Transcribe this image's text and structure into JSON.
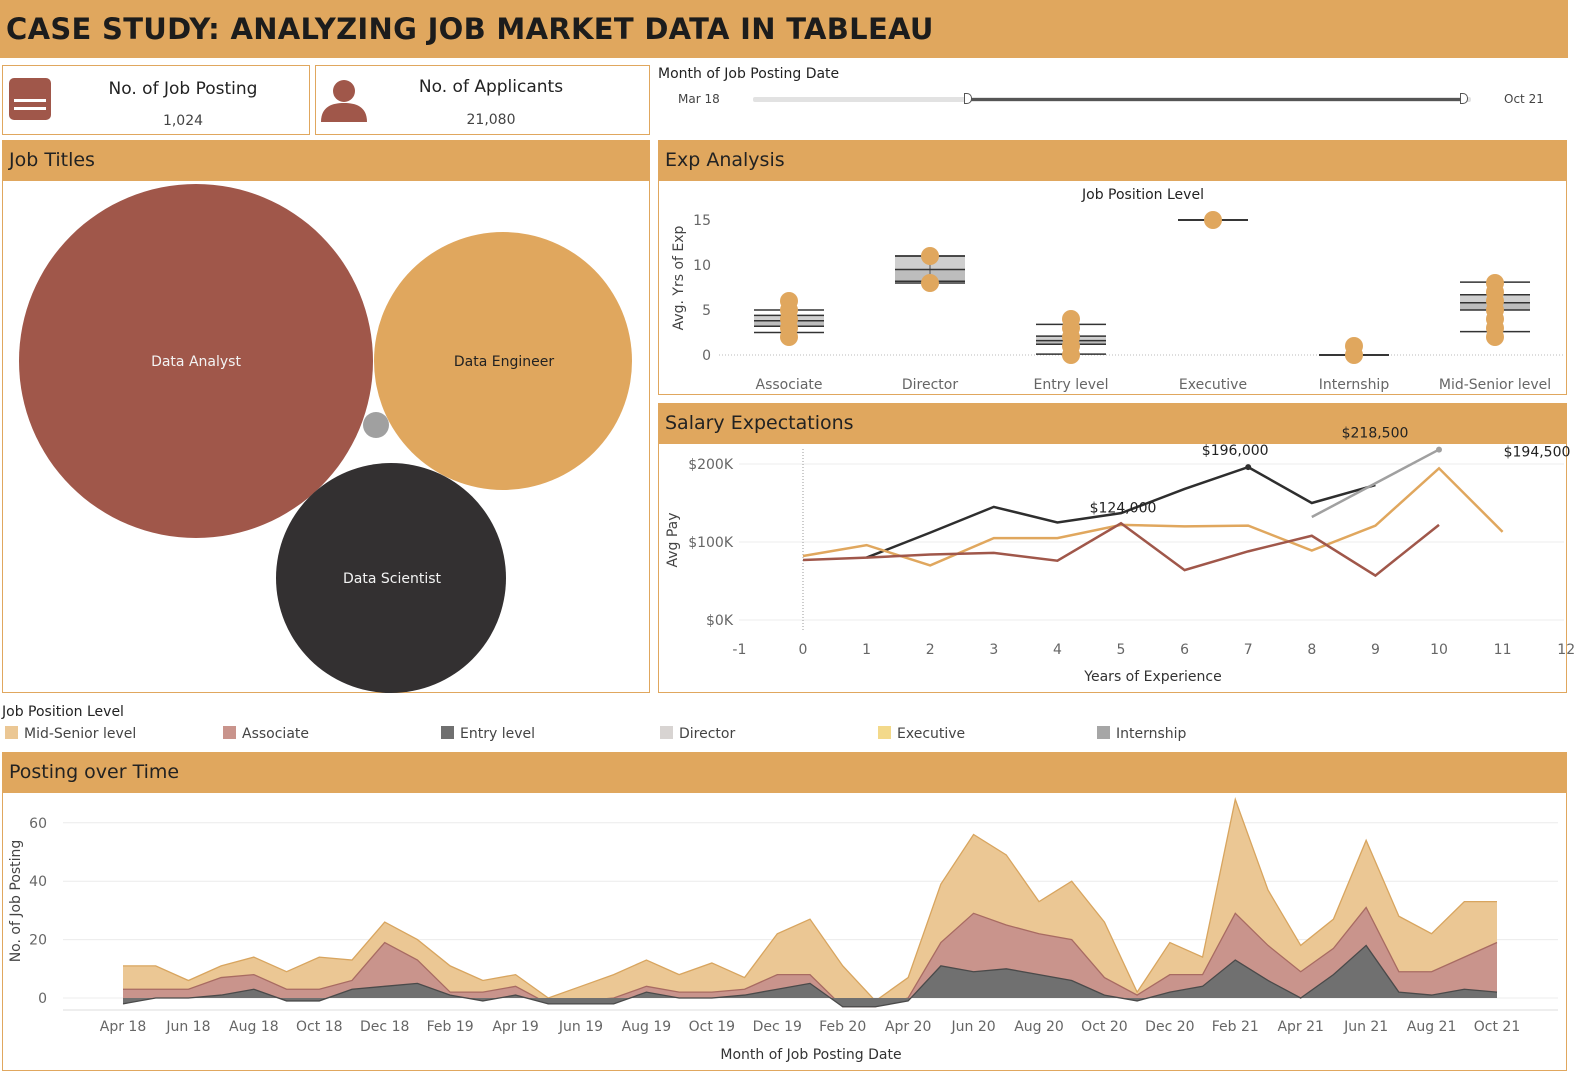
{
  "header": {
    "title": "CASE STUDY: ANALYZING JOB MARKET DATA IN TABLEAU"
  },
  "kpis": {
    "postings": {
      "label": "No. of Job Posting",
      "value": "1,024",
      "icon": "document-icon"
    },
    "applicants": {
      "label": "No. of Applicants",
      "value": "21,080",
      "icon": "person-icon"
    }
  },
  "filter": {
    "label": "Month of Job Posting Date",
    "start": "Mar 18",
    "end": "Oct 21",
    "range_selected": [
      0.3,
      0.99
    ]
  },
  "colors": {
    "accent": "#e0a75e",
    "analyst": "#a0574a",
    "engineer": "#e0a75e",
    "scientist": "#333031",
    "other": "#a0a0a0"
  },
  "panels": {
    "job_titles": "Job Titles",
    "exp": "Exp Analysis",
    "salary": "Salary Expectations",
    "posting": "Posting over Time"
  },
  "legend": {
    "title": "Job Position Level",
    "items": [
      {
        "label": "Mid-Senior level",
        "color": "#ebc794"
      },
      {
        "label": "Associate",
        "color": "#c9948c"
      },
      {
        "label": "Entry level",
        "color": "#707070"
      },
      {
        "label": "Director",
        "color": "#d8d4d2"
      },
      {
        "label": "Executive",
        "color": "#f3d98a"
      },
      {
        "label": "Internship",
        "color": "#a6a6a6"
      }
    ]
  },
  "chart_data": [
    {
      "type": "bubble",
      "title": "Job Titles",
      "items": [
        {
          "label": "Data Analyst",
          "color": "#a0574a"
        },
        {
          "label": "Data Engineer",
          "color": "#e0a75e"
        },
        {
          "label": "Data Scientist",
          "color": "#333031"
        },
        {
          "label": "",
          "color": "#a0a0a0"
        }
      ]
    },
    {
      "type": "scatter",
      "title": "Job Position Level",
      "xlabel": "",
      "ylabel": "Avg. Yrs of Exp",
      "ylim": [
        -1,
        16
      ],
      "yticks": [
        0,
        5,
        10,
        15
      ],
      "categories": [
        "Associate",
        "Director",
        "Entry level",
        "Executive",
        "Internship",
        "Mid-Senior level"
      ],
      "points": [
        [
          2,
          3,
          4,
          5,
          6
        ],
        [
          8,
          11
        ],
        [
          0,
          1,
          2,
          3,
          4
        ],
        [
          15
        ],
        [
          0,
          1
        ],
        [
          2,
          3,
          4,
          5,
          6,
          7,
          8
        ]
      ],
      "boxes": [
        {
          "low": 2.5,
          "q1": 3.2,
          "med": 3.8,
          "q3": 4.4,
          "high": 5.0
        },
        {
          "low": 8.0,
          "q1": 8.2,
          "med": 9.5,
          "q3": 11.0,
          "high": 11.0
        },
        {
          "low": 0.1,
          "q1": 1.2,
          "med": 1.6,
          "q3": 2.1,
          "high": 3.4
        },
        {
          "low": 15,
          "q1": 15,
          "med": 15,
          "q3": 15,
          "high": 15
        },
        {
          "low": 0,
          "q1": 0,
          "med": 0,
          "q3": 0,
          "high": 0
        },
        {
          "low": 2.6,
          "q1": 5.0,
          "med": 5.8,
          "q3": 6.7,
          "high": 8.1
        }
      ]
    },
    {
      "type": "line",
      "title": "Salary Expectations",
      "xlabel": "Years of Experience",
      "ylabel": "Avg Pay",
      "xlim": [
        -1,
        12
      ],
      "xticks": [
        -1,
        0,
        1,
        2,
        3,
        4,
        5,
        6,
        7,
        8,
        9,
        10,
        11,
        12
      ],
      "ylim": [
        -10000,
        220000
      ],
      "yticks": [
        0,
        100000,
        200000
      ],
      "ytick_labels": [
        "$0K",
        "$100K",
        "$200K"
      ],
      "series": [
        {
          "color": "#2e2e2e",
          "x": [
            1,
            2,
            3,
            4,
            5,
            6,
            7,
            8,
            9
          ],
          "y": [
            80000,
            112000,
            145000,
            125000,
            137000,
            168000,
            196000,
            150000,
            173000
          ]
        },
        {
          "color": "#e0a75e",
          "x": [
            0,
            1,
            2,
            3,
            4,
            5,
            6,
            7,
            8,
            9,
            10,
            11
          ],
          "y": [
            82000,
            96000,
            70000,
            105000,
            105000,
            122000,
            120000,
            121000,
            89000,
            121000,
            194500,
            113000
          ]
        },
        {
          "color": "#a0574a",
          "x": [
            0,
            1,
            2,
            3,
            4,
            5,
            6,
            7,
            8,
            9,
            10
          ],
          "y": [
            77000,
            80000,
            84000,
            86000,
            76000,
            124000,
            64000,
            88000,
            108000,
            57000,
            122000
          ]
        },
        {
          "color": "#a0a0a0",
          "x": [
            8,
            10
          ],
          "y": [
            132000,
            218500
          ]
        }
      ],
      "annotations": [
        {
          "text": "$124,000",
          "x": 5,
          "y": 124000
        },
        {
          "text": "$196,000",
          "x": 7,
          "y": 196000
        },
        {
          "text": "$218,500",
          "x": 10,
          "y": 218500
        },
        {
          "text": "$194,500",
          "x": 10,
          "y": 194500
        }
      ]
    },
    {
      "type": "area",
      "title": "Posting over Time",
      "xlabel": "Month of Job Posting Date",
      "ylabel": "No. of Job Posting",
      "ylim": [
        -3,
        68
      ],
      "yticks": [
        0,
        20,
        40,
        60
      ],
      "xtick_labels": [
        "Apr 18",
        "Jun 18",
        "Aug 18",
        "Oct 18",
        "Dec 18",
        "Feb 19",
        "Apr 19",
        "Jun 19",
        "Aug 19",
        "Oct 19",
        "Dec 19",
        "Feb 20",
        "Apr 20",
        "Jun 20",
        "Aug 20",
        "Oct 20",
        "Dec 20",
        "Feb 21",
        "Apr 21",
        "Jun 21",
        "Aug 21",
        "Oct 21"
      ],
      "months": [
        "Apr 18",
        "May 18",
        "Jun 18",
        "Jul 18",
        "Aug 18",
        "Sep 18",
        "Oct 18",
        "Nov 18",
        "Dec 18",
        "Jan 19",
        "Feb 19",
        "Mar 19",
        "Apr 19",
        "May 19",
        "Jun 19",
        "Jul 19",
        "Aug 19",
        "Sep 19",
        "Oct 19",
        "Nov 19",
        "Dec 19",
        "Jan 20",
        "Feb 20",
        "Mar 20",
        "Apr 20",
        "May 20",
        "Jun 20",
        "Jul 20",
        "Aug 20",
        "Sep 20",
        "Oct 20",
        "Nov 20",
        "Dec 20",
        "Jan 21",
        "Feb 21",
        "Mar 21",
        "Apr 21",
        "May 21",
        "Jun 21",
        "Jul 21",
        "Aug 21",
        "Sep 21",
        "Oct 21"
      ],
      "series": [
        {
          "name": "Entry level",
          "color": "#707070",
          "values": [
            -2,
            0,
            0,
            1,
            3,
            -1,
            -1,
            3,
            4,
            5,
            1,
            -1,
            1,
            -2,
            -2,
            -2,
            2,
            0,
            0,
            1,
            3,
            5,
            -3,
            -3,
            -1,
            11,
            9,
            10,
            8,
            6,
            1,
            -1,
            2,
            4,
            13,
            6,
            0,
            8,
            18,
            2,
            1,
            3,
            2
          ]
        },
        {
          "name": "Associate",
          "color": "#c9948c",
          "values": [
            5,
            3,
            3,
            6,
            5,
            4,
            4,
            3,
            15,
            8,
            1,
            3,
            3,
            0,
            1,
            2,
            2,
            2,
            2,
            2,
            5,
            3,
            0,
            0,
            1,
            8,
            20,
            15,
            14,
            14,
            6,
            2,
            6,
            4,
            16,
            12,
            9,
            9,
            13,
            7,
            8,
            11,
            17
          ]
        },
        {
          "name": "Mid-Senior level",
          "color": "#ebc794",
          "values": [
            8,
            8,
            3,
            4,
            6,
            6,
            11,
            7,
            7,
            7,
            9,
            4,
            4,
            2,
            5,
            8,
            9,
            6,
            10,
            4,
            14,
            19,
            14,
            2,
            7,
            20,
            27,
            24,
            11,
            20,
            19,
            1,
            11,
            6,
            39,
            19,
            9,
            10,
            23,
            19,
            13,
            19,
            14
          ]
        }
      ]
    }
  ]
}
